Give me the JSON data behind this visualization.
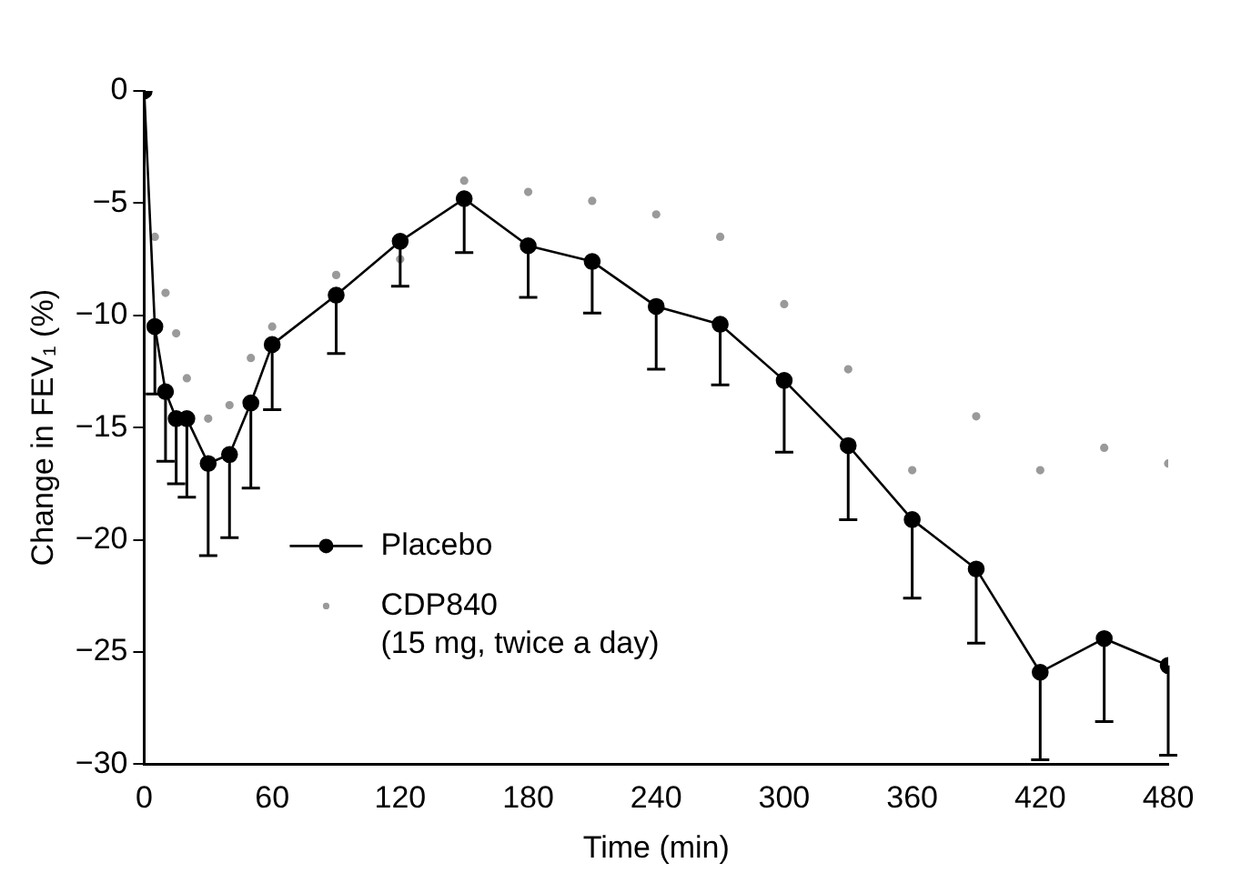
{
  "chart_data": {
    "type": "line",
    "xlabel": "Time (min)",
    "ylabel": "Change in FEV₁ (%)",
    "xlim": [
      0,
      480
    ],
    "xticks": [
      0,
      60,
      120,
      180,
      240,
      300,
      360,
      420,
      480
    ],
    "ylim": [
      -30,
      0
    ],
    "yticks": [
      -30,
      -25,
      -20,
      -15,
      -10,
      -5,
      0
    ],
    "grid": false,
    "legend": "bottom left",
    "marker": "circle",
    "line_style": "solid",
    "series": [
      {
        "name": "Placebo",
        "type": "line",
        "color": "#000000",
        "x": [
          0,
          5,
          10,
          15,
          20,
          30,
          40,
          50,
          60,
          90,
          120,
          150,
          180,
          210,
          240,
          270,
          300,
          330,
          360,
          390,
          420,
          450,
          480
        ],
        "values": [
          0,
          -10.5,
          -13.4,
          -14.6,
          -14.6,
          -16.6,
          -16.2,
          -13.9,
          -11.3,
          -9.1,
          -6.7,
          -4.8,
          -6.9,
          -7.6,
          -9.6,
          -10.4,
          -12.9,
          -15.8,
          -19.1,
          -21.3,
          -25.9,
          -24.4,
          -25.6
        ],
        "errors": [
          null,
          [
            -13.5,
            -10.5
          ],
          [
            -16.5,
            -13.4
          ],
          [
            -17.5,
            -14.6
          ],
          [
            -18.1,
            -14.6
          ],
          [
            -20.7,
            -16.6
          ],
          [
            -19.9,
            -16.2
          ],
          [
            -17.7,
            -13.9
          ],
          [
            -14.2,
            -11.3
          ],
          [
            -11.7,
            -9.1
          ],
          [
            -8.7,
            -6.7
          ],
          [
            -7.2,
            -4.8
          ],
          [
            -9.2,
            -6.9
          ],
          [
            -9.9,
            -7.6
          ],
          [
            -12.4,
            -9.6
          ],
          [
            -13.1,
            -10.4
          ],
          [
            -16.1,
            -12.9
          ],
          [
            -19.1,
            -15.8
          ],
          [
            -22.6,
            -19.1
          ],
          [
            -24.6,
            -21.3
          ],
          [
            -29.8,
            -25.9
          ],
          [
            -28.1,
            -24.4
          ],
          [
            -29.6,
            -25.6
          ]
        ]
      },
      {
        "name": "CDP840\n(15 mg, twice a day)",
        "type": "scatter",
        "color": "#9a9a9a",
        "x": [
          5,
          10,
          15,
          20,
          30,
          40,
          50,
          60,
          90,
          120,
          150,
          180,
          210,
          240,
          270,
          300,
          330,
          360,
          390,
          420,
          450,
          480
        ],
        "values": [
          -6.5,
          -9,
          -10.8,
          -12.8,
          -14.6,
          -14,
          -11.9,
          -10.5,
          -8.2,
          -7.5,
          -4,
          -4.5,
          -4.9,
          -5.5,
          -6.5,
          -9.5,
          -12.4,
          -16.9,
          -14.5,
          -16.9,
          -15.9,
          -16.6
        ]
      }
    ]
  }
}
